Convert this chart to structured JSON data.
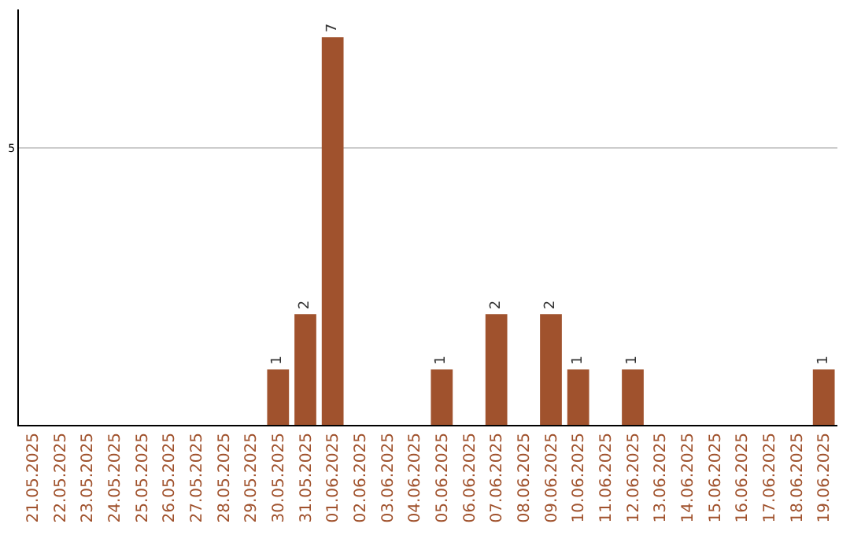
{
  "chart_data": {
    "type": "bar",
    "categories": [
      "21.05.2025",
      "22.05.2025",
      "23.05.2025",
      "24.05.2025",
      "25.05.2025",
      "26.05.2025",
      "27.05.2025",
      "28.05.2025",
      "29.05.2025",
      "30.05.2025",
      "31.05.2025",
      "01.06.2025",
      "02.06.2025",
      "03.06.2025",
      "04.06.2025",
      "05.06.2025",
      "06.06.2025",
      "07.06.2025",
      "08.06.2025",
      "09.06.2025",
      "10.06.2025",
      "11.06.2025",
      "12.06.2025",
      "13.06.2025",
      "14.06.2025",
      "15.06.2025",
      "16.06.2025",
      "17.06.2025",
      "18.06.2025",
      "19.06.2025"
    ],
    "values": [
      0,
      0,
      0,
      0,
      0,
      0,
      0,
      0,
      0,
      1,
      2,
      7,
      0,
      0,
      0,
      1,
      0,
      2,
      0,
      2,
      1,
      0,
      1,
      0,
      0,
      0,
      0,
      0,
      0,
      1
    ],
    "value_labels": [
      null,
      null,
      null,
      null,
      null,
      null,
      null,
      null,
      null,
      "1",
      "2",
      "7",
      null,
      null,
      null,
      "1",
      null,
      "2",
      null,
      "2",
      "1",
      null,
      "1",
      null,
      null,
      null,
      null,
      null,
      null,
      "1"
    ],
    "color": "#a0522d",
    "ylim": [
      0,
      7.5
    ],
    "yticks": [
      5
    ],
    "grid": "y"
  }
}
